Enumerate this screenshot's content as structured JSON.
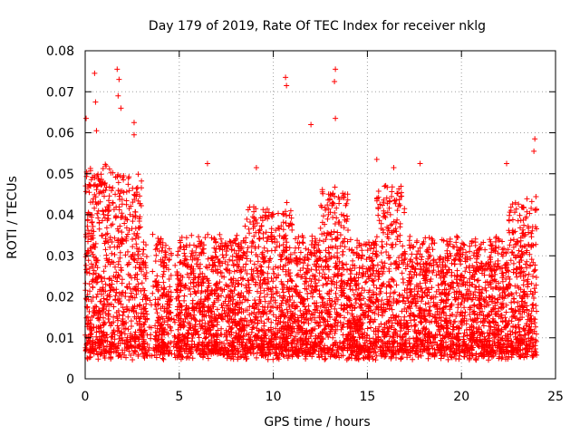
{
  "chart_data": {
    "type": "scatter",
    "title": "Day 179 of 2019, Rate Of TEC Index for receiver nklg",
    "xlabel": "GPS time / hours",
    "ylabel": "ROTI / TECUs",
    "xlim": [
      0,
      25
    ],
    "ylim": [
      0,
      0.08
    ],
    "x_ticks": [
      0,
      5,
      10,
      15,
      20,
      25
    ],
    "x_tick_labels": [
      "0",
      "5",
      "10",
      "15",
      "20",
      "25"
    ],
    "y_ticks": [
      0,
      0.01,
      0.02,
      0.03,
      0.04,
      0.05,
      0.06,
      0.07,
      0.08
    ],
    "y_tick_labels": [
      "0",
      "0.01",
      "0.02",
      "0.03",
      "0.04",
      "0.05",
      "0.06",
      "0.07",
      "0.08"
    ],
    "grid": true,
    "marker": "plus",
    "marker_color": "#ff0000",
    "series": [
      {
        "name": "ROTI",
        "peaks": [
          {
            "x": 0.05,
            "y": 0.0635
          },
          {
            "x": 0.5,
            "y": 0.0745
          },
          {
            "x": 0.55,
            "y": 0.0675
          },
          {
            "x": 0.6,
            "y": 0.0605
          },
          {
            "x": 1.7,
            "y": 0.0755
          },
          {
            "x": 1.8,
            "y": 0.073
          },
          {
            "x": 1.75,
            "y": 0.069
          },
          {
            "x": 1.9,
            "y": 0.066
          },
          {
            "x": 2.6,
            "y": 0.0625
          },
          {
            "x": 2.6,
            "y": 0.0595
          },
          {
            "x": 10.65,
            "y": 0.0735
          },
          {
            "x": 10.7,
            "y": 0.0715
          },
          {
            "x": 12.0,
            "y": 0.062
          },
          {
            "x": 13.3,
            "y": 0.0755
          },
          {
            "x": 13.25,
            "y": 0.0725
          },
          {
            "x": 13.3,
            "y": 0.0635
          },
          {
            "x": 23.9,
            "y": 0.0585
          },
          {
            "x": 23.85,
            "y": 0.0555
          },
          {
            "x": 6.5,
            "y": 0.0525
          },
          {
            "x": 9.1,
            "y": 0.0515
          },
          {
            "x": 15.5,
            "y": 0.0535
          },
          {
            "x": 16.4,
            "y": 0.0515
          },
          {
            "x": 17.8,
            "y": 0.0525
          },
          {
            "x": 22.4,
            "y": 0.0525
          }
        ]
      }
    ]
  }
}
